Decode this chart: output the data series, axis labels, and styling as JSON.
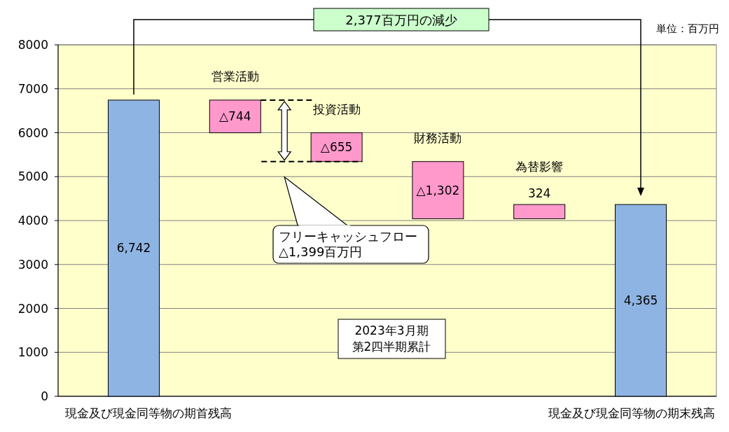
{
  "chart_data": {
    "type": "bar",
    "categories": [
      "現金及び現金同等物の期首残高",
      "営業活動",
      "投資活動",
      "財務活動",
      "為替影響",
      "現金及び現金同等物の期末残高"
    ],
    "values": [
      6742,
      -744,
      -655,
      -1302,
      324,
      4365
    ],
    "base": [
      0,
      6742,
      5998,
      5343,
      4041,
      0
    ],
    "colors": [
      "#8eb4e3",
      "#ff99cc",
      "#ff99cc",
      "#ff99cc",
      "#ff99cc",
      "#8eb4e3"
    ],
    "value_labels": [
      "6,742",
      "△744",
      "△655",
      "△1,302",
      "324",
      "4,365"
    ],
    "ylim": [
      0,
      8000
    ],
    "yticks": [
      0,
      1000,
      2000,
      3000,
      4000,
      5000,
      6000,
      7000,
      8000
    ],
    "grid": "y",
    "annotations": [
      "2,377百万円の減少",
      "単位：百万円",
      "フリーキャッシュフロー\n△1,399百万円",
      "2023年3月期",
      "第2四半期累計"
    ]
  }
}
